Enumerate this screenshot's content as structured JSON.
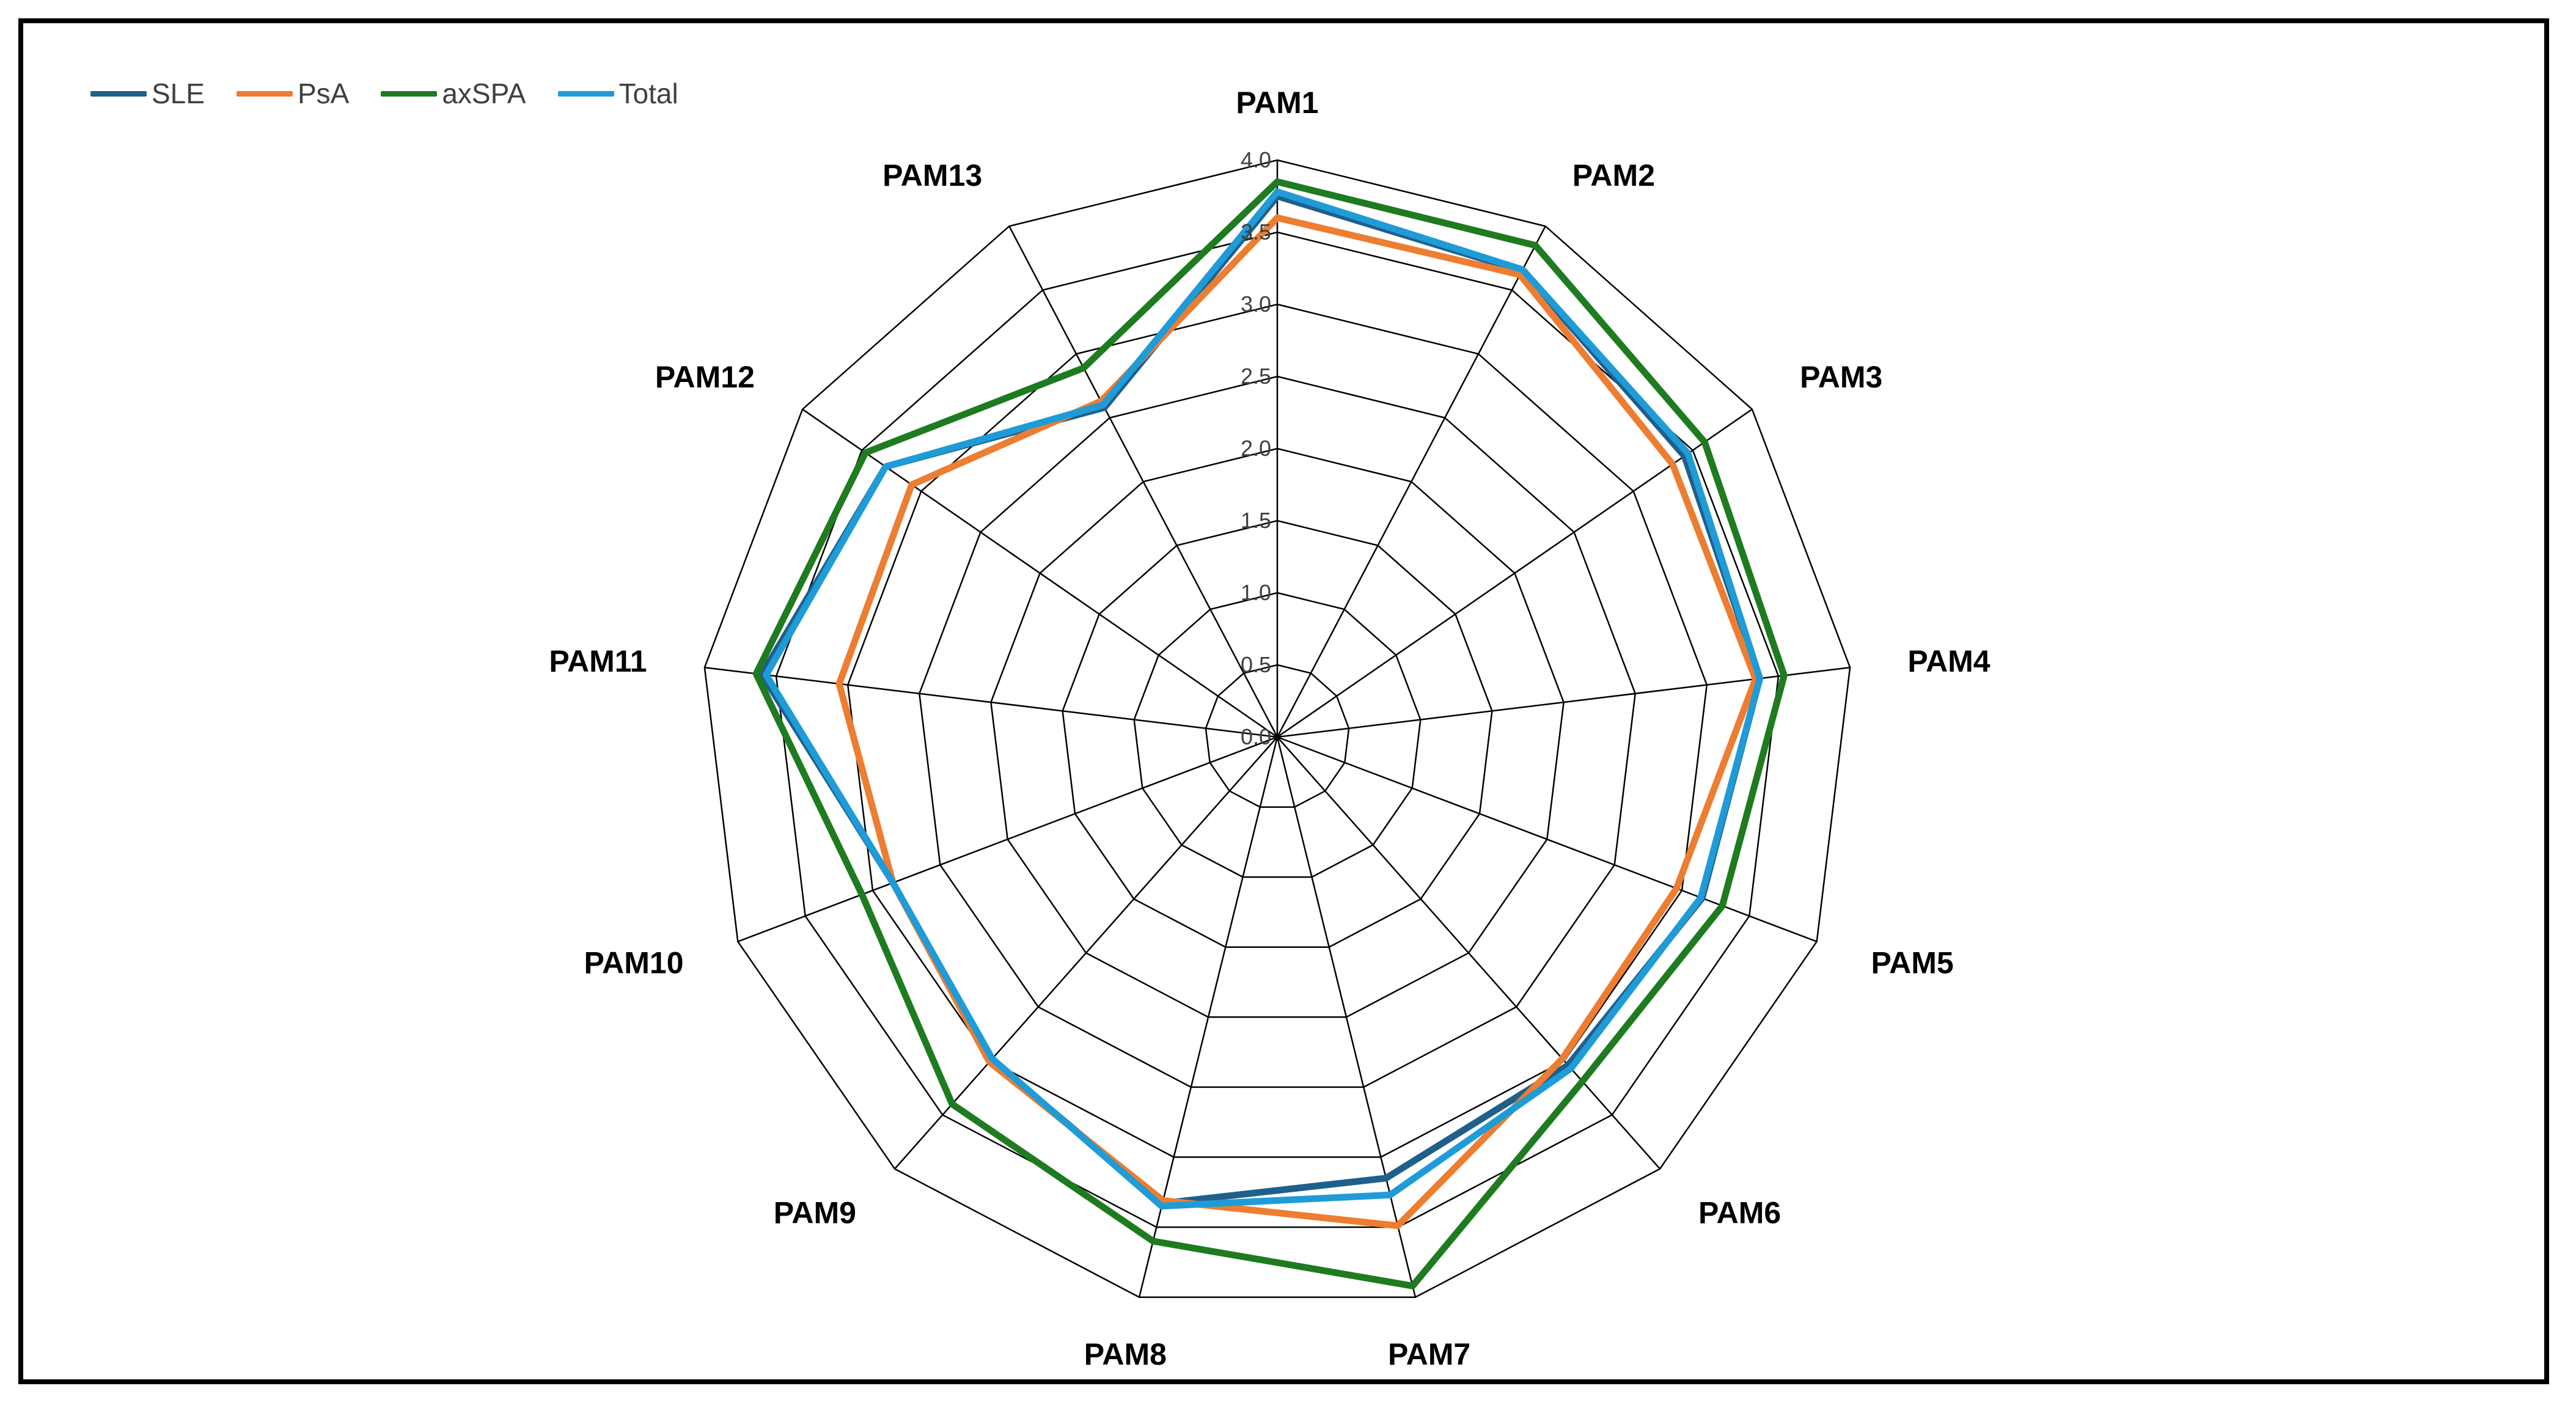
{
  "chart_data": {
    "type": "radar",
    "categories": [
      "PAM1",
      "PAM2",
      "PAM3",
      "PAM4",
      "PAM5",
      "PAM6",
      "PAM7",
      "PAM8",
      "PAM9",
      "PAM10",
      "PAM11",
      "PAM12",
      "PAM13"
    ],
    "rlim": [
      0.0,
      4.0
    ],
    "ticks": [
      "0.0",
      "0.5",
      "1.0",
      "1.5",
      "2.0",
      "2.5",
      "3.0",
      "3.5",
      "4.0"
    ],
    "legend_position": "top-left",
    "series": [
      {
        "name": "SLE",
        "color": "#1f5f8b",
        "values": [
          3.75,
          3.65,
          3.43,
          3.37,
          3.15,
          3.04,
          3.15,
          3.33,
          2.99,
          2.85,
          3.6,
          3.3,
          2.58
        ]
      },
      {
        "name": "PsA",
        "color": "#ed7d31",
        "values": [
          3.6,
          3.62,
          3.33,
          3.34,
          2.96,
          2.98,
          3.49,
          3.31,
          3.01,
          2.85,
          3.06,
          3.08,
          2.63
        ]
      },
      {
        "name": "axSPA",
        "color": "#1e7b20",
        "values": [
          3.85,
          3.85,
          3.6,
          3.54,
          3.3,
          3.19,
          3.92,
          3.6,
          3.4,
          3.08,
          3.64,
          3.47,
          2.89
        ]
      },
      {
        "name": "Total",
        "color": "#1f9bd7",
        "values": [
          3.78,
          3.66,
          3.46,
          3.37,
          3.14,
          3.07,
          3.27,
          3.35,
          2.98,
          2.85,
          3.57,
          3.3,
          2.6
        ]
      }
    ]
  }
}
